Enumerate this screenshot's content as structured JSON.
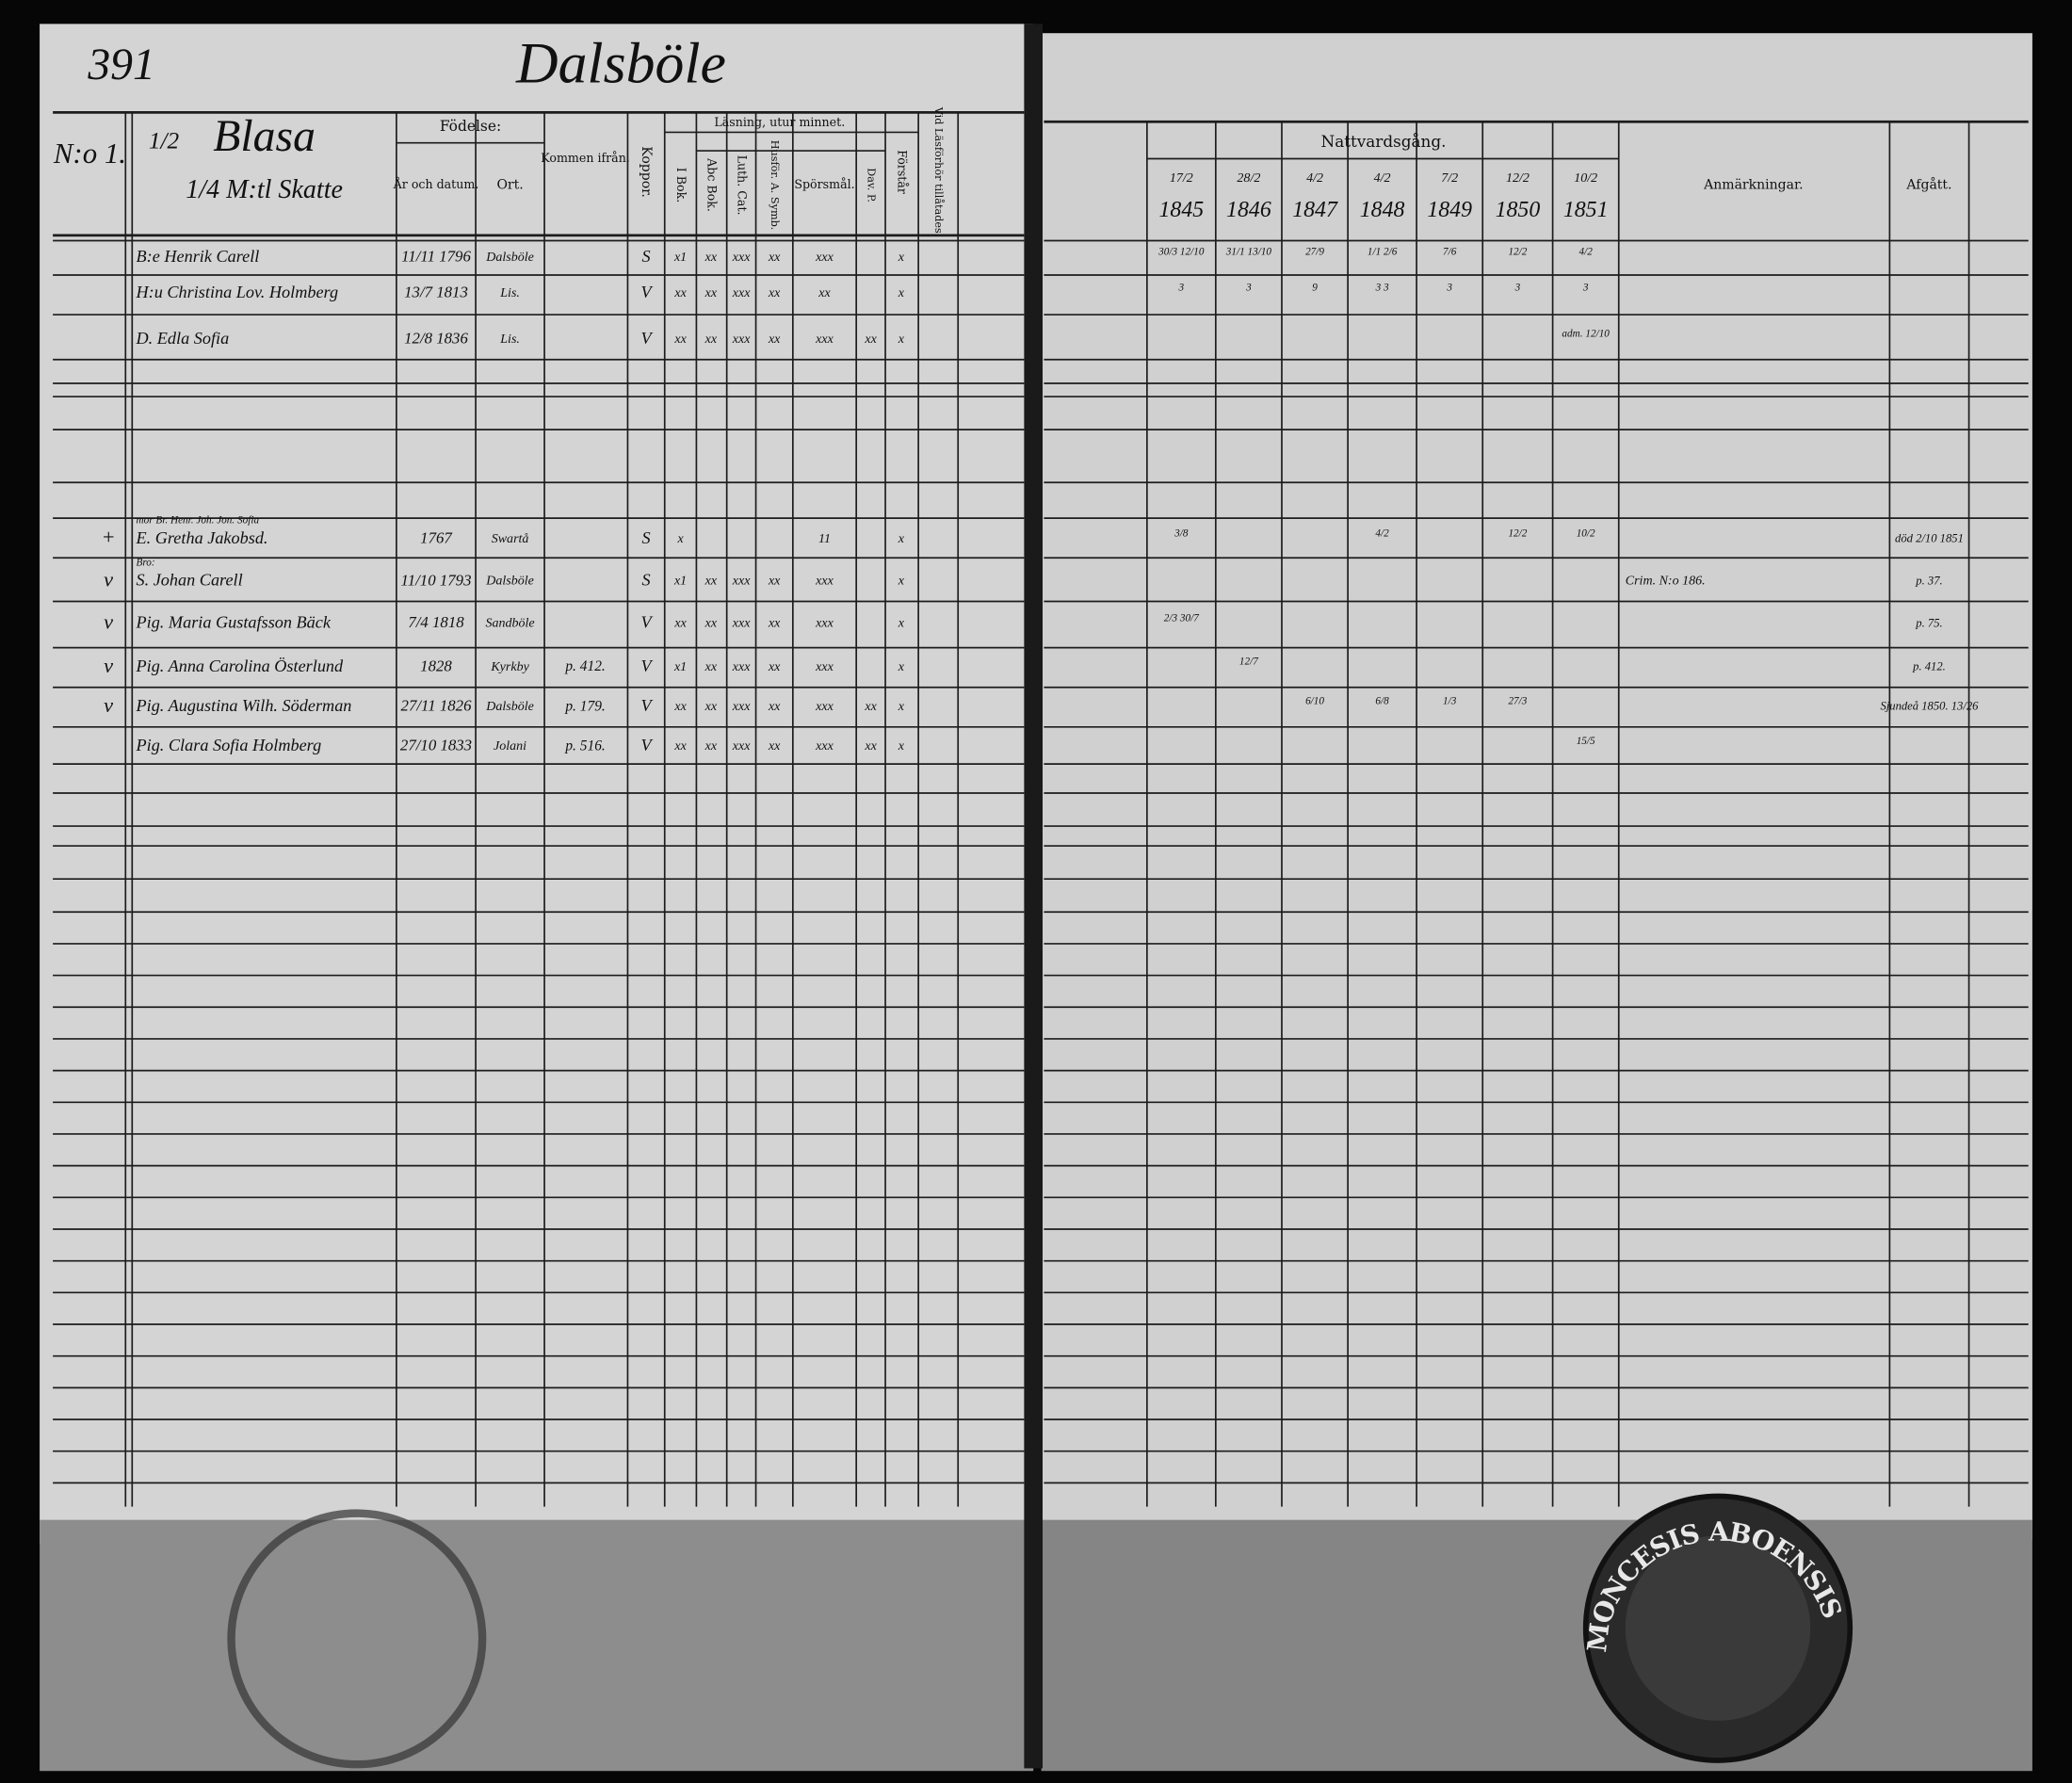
{
  "header": {
    "page_number": "391",
    "village": "Dalsböle",
    "farm_number": "N:o 1.",
    "farm_share": "1/2",
    "farm_name": "Blasa",
    "mantal": "1/4 M:tl Skatte"
  },
  "columns": {
    "birth": "Födelse:",
    "birth_date": "År och datum.",
    "birth_place": "Ort.",
    "came_from": "Kommen ifrån.",
    "smallpox": "Koppor.",
    "reading": "Läsning, utur minnet.",
    "book": "I Bok.",
    "abc": "Abc Bok.",
    "catechism": "Luth. Cat.",
    "household": "Husför. A. Symb.",
    "questions": "Spörsmål.",
    "david": "Dav. P.",
    "understanding": "Förstår",
    "allowed": "Vid Läsförhör tillåtades.",
    "communion": "Nattvardsgång.",
    "remarks": "Anmärkningar.",
    "departed": "Afgått."
  },
  "communion_years": [
    {
      "date": "17/2",
      "year": "1845"
    },
    {
      "date": "28/2",
      "year": "1846"
    },
    {
      "date": "4/2",
      "year": "1847"
    },
    {
      "date": "4/2",
      "year": "1848"
    },
    {
      "date": "7/2",
      "year": "1849"
    },
    {
      "date": "12/2",
      "year": "1850"
    },
    {
      "date": "10/2",
      "year": "1851"
    }
  ],
  "rows": [
    {
      "name": "B:e Henrik Carell",
      "birth_date": "11/11 1796",
      "birth_place": "Dalsböle",
      "smallpox": "S",
      "reading": [
        "x1",
        "xx",
        "xxx",
        "xx",
        "xxx",
        null,
        "x"
      ],
      "communion": [
        "30/3 12/10",
        "31/1 13/10",
        "27/9",
        "1/1 2/6",
        "7/6",
        "12/2",
        "4/2"
      ]
    },
    {
      "name": "H:u Christina Lov. Holmberg",
      "birth_date": "13/7 1813",
      "birth_place": "Lis.",
      "smallpox": "V",
      "reading": [
        "xx",
        "xx",
        "xxx",
        "xx",
        "xx",
        null,
        "x"
      ],
      "communion": [
        "3",
        "3",
        "9",
        "3 3",
        "3",
        "3",
        "3"
      ]
    },
    {
      "name": "D. Edla Sofia",
      "birth_date": "12/8 1836",
      "birth_place": "Lis.",
      "smallpox": "V",
      "reading": [
        "xx",
        "xx",
        "xxx",
        "xx",
        "xxx",
        "xx",
        "x"
      ],
      "communion": [
        null,
        null,
        null,
        null,
        null,
        null,
        "adm. 12/10"
      ]
    },
    {
      "margin": "+",
      "prefix": "mor Br. Henr. Joh. Jon. Sofia",
      "name": "E. Gretha Jakobsd.",
      "birth_date": "1767",
      "birth_place": "Swartå",
      "smallpox": "S",
      "reading": [
        "x",
        null,
        null,
        null,
        "11",
        null,
        "x"
      ],
      "communion": [
        "3/8",
        null,
        null,
        "4/2",
        null,
        "12/2",
        "10/2"
      ],
      "departed": "död 2/10 1851"
    },
    {
      "margin": "v",
      "prefix": "Bro:",
      "name": "S. Johan Carell",
      "birth_date": "11/10 1793",
      "birth_place": "Dalsböle",
      "smallpox": "S",
      "reading": [
        "x1",
        "xx",
        "xxx",
        "xx",
        "xxx",
        null,
        "x"
      ],
      "remarks": "Crim. N:o 186.",
      "departed": "p. 37."
    },
    {
      "margin": "v",
      "name": "Pig. Maria Gustafsson Bäck",
      "birth_date": "7/4 1818",
      "birth_place": "Sandböle",
      "smallpox": "V",
      "reading": [
        "xx",
        "xx",
        "xxx",
        "xx",
        "xxx",
        null,
        "x"
      ],
      "communion": [
        "2/3 30/7",
        null,
        null,
        null,
        null,
        null,
        null
      ],
      "departed": "p. 75."
    },
    {
      "margin": "v",
      "name": "Pig. Anna Carolina Österlund",
      "birth_date": "1828",
      "birth_place": "Kyrkby",
      "came_from": "p. 412.",
      "smallpox": "V",
      "reading": [
        "x1",
        "xx",
        "xxx",
        "xx",
        "xxx",
        null,
        "x"
      ],
      "communion": [
        null,
        "12/7",
        null,
        null,
        null,
        null,
        null
      ],
      "departed": "p. 412."
    },
    {
      "margin": "v",
      "name": "Pig. Augustina Wilh. Söderman",
      "birth_date": "27/11 1826",
      "birth_place": "Dalsböle",
      "came_from": "p. 179.",
      "smallpox": "V",
      "reading": [
        "xx",
        "xx",
        "xxx",
        "xx",
        "xxx",
        "xx",
        "x"
      ],
      "communion": [
        null,
        null,
        "6/10",
        "6/8",
        "1/3",
        "27/3",
        null
      ],
      "departed": "Sjundeå 1850. 13/26"
    },
    {
      "name": "Pig. Clara Sofia Holmberg",
      "birth_date": "27/10 1833",
      "birth_place": "Jolani",
      "came_from": "p. 516.",
      "smallpox": "V",
      "reading": [
        "xx",
        "xx",
        "xxx",
        "xx",
        "xxx",
        "xx",
        "x"
      ],
      "communion": [
        null,
        null,
        null,
        null,
        null,
        null,
        "15/5"
      ]
    }
  ],
  "stamp": "MONCESIS ABOENSIS"
}
